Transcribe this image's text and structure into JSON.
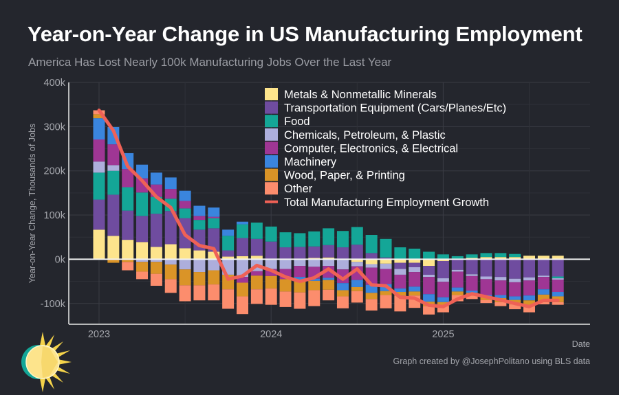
{
  "chart_data": {
    "type": "bar",
    "barmode": "relative",
    "title": "Year-on-Year Change in US Manufacturing Employment",
    "subtitle": "America Has Lost Nearly 100k Manufacturing Jobs Over the Last Year",
    "xlabel": "Date",
    "ylabel": "Year-on-Year Change, Thousands of Jobs",
    "ylim": [
      -147,
      400
    ],
    "yticks": [
      {
        "value": 400,
        "label": "400k"
      },
      {
        "value": 300,
        "label": "300k"
      },
      {
        "value": 200,
        "label": "200k"
      },
      {
        "value": 100,
        "label": "100k"
      },
      {
        "value": 0,
        "label": "0k"
      },
      {
        "value": -100,
        "label": "-100k"
      }
    ],
    "xticks": [
      {
        "value": "2023-01",
        "label": "2023"
      },
      {
        "value": "2024-01",
        "label": "2024"
      },
      {
        "value": "2025-01",
        "label": "2025"
      }
    ],
    "grid": true,
    "legend_position": "top-right",
    "x": [
      "2023-01",
      "2023-02",
      "2023-03",
      "2023-04",
      "2023-05",
      "2023-06",
      "2023-07",
      "2023-08",
      "2023-09",
      "2023-10",
      "2023-11",
      "2023-12",
      "2024-01",
      "2024-02",
      "2024-03",
      "2024-04",
      "2024-05",
      "2024-06",
      "2024-07",
      "2024-08",
      "2024-09",
      "2024-10",
      "2024-11",
      "2024-12",
      "2025-01",
      "2025-02",
      "2025-03",
      "2025-04",
      "2025-05",
      "2025-06",
      "2025-07",
      "2025-08",
      "2025-09"
    ],
    "series": [
      {
        "name": "Metals & Nonmetallic Minerals",
        "color": "#fde48c",
        "values": [
          67,
          53,
          44,
          39,
          28,
          34,
          25,
          20,
          17,
          6,
          7,
          8,
          0,
          0,
          0,
          3,
          4,
          0,
          -6,
          -11,
          -10,
          -8,
          -8,
          -15,
          -4,
          0,
          3,
          5,
          5,
          5,
          8,
          8,
          8
        ]
      },
      {
        "name": "Transportation Equipment (Cars/Planes/Etc)",
        "color": "#6f4c9f",
        "values": [
          68,
          93,
          66,
          59,
          75,
          75,
          68,
          47,
          53,
          14,
          41,
          38,
          40,
          27,
          28,
          26,
          28,
          27,
          33,
          14,
          4,
          -14,
          -10,
          -20,
          -39,
          -24,
          -34,
          -39,
          -40,
          -44,
          -41,
          -37,
          -39
        ]
      },
      {
        "name": "Food",
        "color": "#14a697",
        "values": [
          61,
          54,
          53,
          53,
          38,
          28,
          22,
          22,
          23,
          33,
          31,
          37,
          34,
          34,
          31,
          34,
          38,
          37,
          40,
          41,
          42,
          27,
          24,
          17,
          11,
          7,
          8,
          9,
          9,
          7,
          0,
          0,
          -4
        ]
      },
      {
        "name": "Chemicals, Petroleum, & Plastic",
        "color": "#adaedc",
        "values": [
          25,
          13,
          0,
          -6,
          -6,
          -12,
          -23,
          -29,
          -25,
          -35,
          -40,
          -27,
          -22,
          -22,
          -15,
          -17,
          -15,
          -23,
          -10,
          -8,
          -12,
          -13,
          -11,
          -5,
          -8,
          -4,
          -4,
          -6,
          -8,
          -8,
          -7,
          -3,
          -3
        ]
      },
      {
        "name": "Computer, Electronics, & Electrical",
        "color": "#9f3694",
        "values": [
          50,
          47,
          41,
          32,
          28,
          22,
          17,
          9,
          3,
          0,
          -13,
          -10,
          -16,
          -23,
          -25,
          -27,
          -27,
          -31,
          -31,
          -39,
          -34,
          -31,
          -33,
          -39,
          -35,
          -36,
          -33,
          -36,
          -33,
          -32,
          -34,
          -28,
          -28
        ]
      },
      {
        "name": "Machinery",
        "color": "#3a85de",
        "values": [
          48,
          39,
          36,
          31,
          27,
          26,
          23,
          23,
          21,
          14,
          6,
          0,
          0,
          0,
          -6,
          -5,
          -5,
          -16,
          -16,
          -18,
          -16,
          -8,
          -11,
          -17,
          -11,
          -9,
          -5,
          -5,
          -7,
          -8,
          -11,
          -12,
          -10
        ]
      },
      {
        "name": "Wood, Paper, & Printing",
        "color": "#da9427",
        "values": [
          9,
          -8,
          -6,
          -22,
          -27,
          -33,
          -36,
          -30,
          -32,
          -33,
          -31,
          -31,
          -28,
          -28,
          -29,
          -21,
          -22,
          -14,
          -9,
          -14,
          -9,
          -8,
          -9,
          -10,
          -9,
          -8,
          -6,
          -6,
          -9,
          -10,
          -13,
          -17,
          -13
        ]
      },
      {
        "name": "Other",
        "color": "#fc8d6d",
        "values": [
          9,
          0,
          -19,
          -17,
          -27,
          -31,
          -36,
          -34,
          -36,
          -44,
          -40,
          -33,
          -37,
          -35,
          -37,
          -36,
          -24,
          -27,
          -26,
          -26,
          -30,
          -36,
          -28,
          -19,
          -14,
          -14,
          -8,
          -7,
          -9,
          -11,
          -14,
          -5,
          -6
        ]
      }
    ],
    "line": {
      "name": "Total Manufacturing Employment Growth",
      "color": "#ef6156",
      "values": [
        337,
        291,
        210,
        178,
        141,
        117,
        55,
        31,
        24,
        -45,
        -38,
        -14,
        -25,
        -40,
        -50,
        -42,
        -22,
        -45,
        -22,
        -58,
        -60,
        -86,
        -88,
        -104,
        -107,
        -90,
        -78,
        -85,
        -92,
        -100,
        -107,
        -93,
        -93
      ]
    }
  },
  "credit": "Graph created by @JosephPolitano using BLS data",
  "logo": {
    "icon": "sun-logo-icon"
  },
  "colors": {
    "background": "#24262d",
    "axis": "#e8e8e8",
    "grid": "#3a3c44"
  }
}
